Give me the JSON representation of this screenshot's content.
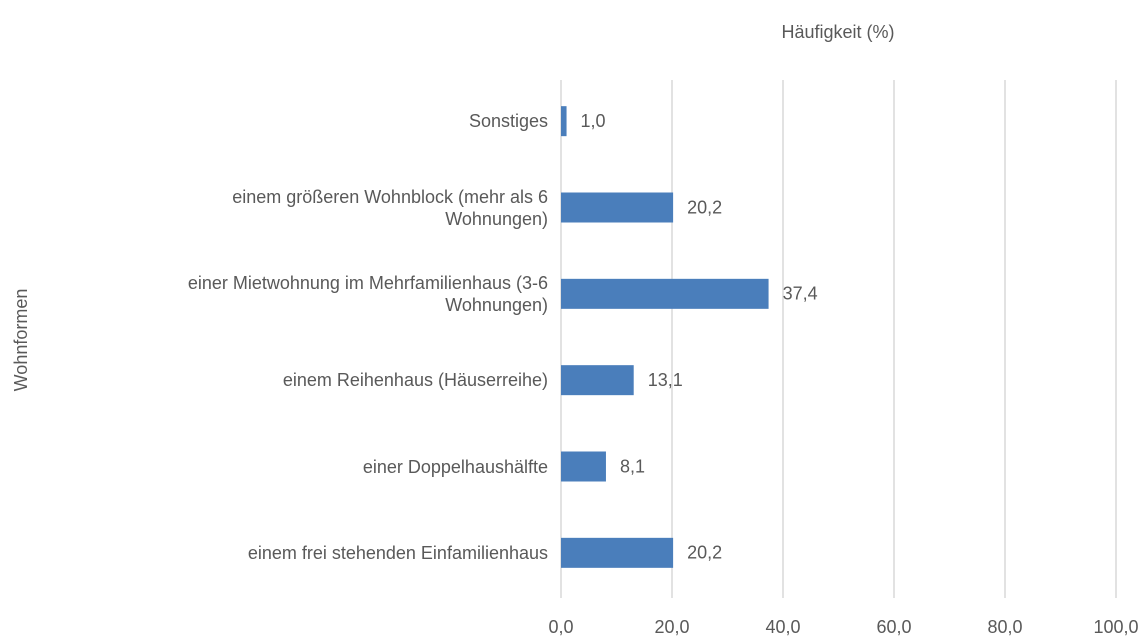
{
  "chart_data": {
    "type": "hbar",
    "x_label": "Häufigkeit (%)",
    "y_label": "Wohnformen",
    "categories": [
      "Sonstiges",
      "einem größeren Wohnblock (mehr als 6 Wohnungen)",
      "einer Mietwohnung im Mehrfamilienhaus (3-6 Wohnungen)",
      "einem Reihenhaus (Häuserreihe)",
      "einer Doppelhaushälfte",
      "einem frei stehenden Einfamilienhaus"
    ],
    "values": [
      1.0,
      20.2,
      37.4,
      13.1,
      8.1,
      20.2
    ],
    "value_labels": [
      "1,0",
      "20,2",
      "37,4",
      "13,1",
      "8,1",
      "20,2"
    ],
    "color": "#4a7ebb",
    "xlim": [
      0,
      100
    ],
    "xticks": [
      {
        "value": 0,
        "label": "0,0"
      },
      {
        "value": 20,
        "label": "20,0"
      },
      {
        "value": 40,
        "label": "40,0"
      },
      {
        "value": 60,
        "label": "60,0"
      },
      {
        "value": 80,
        "label": "80,0"
      },
      {
        "value": 100,
        "label": "100,0"
      }
    ],
    "grid": true
  }
}
